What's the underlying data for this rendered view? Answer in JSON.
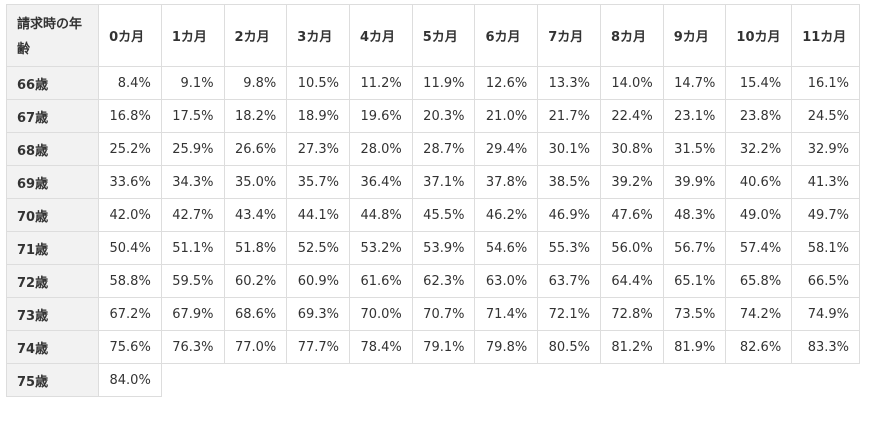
{
  "table": {
    "corner_label": "請求時の年齢",
    "columns": [
      "0カ月",
      "1カ月",
      "2カ月",
      "3カ月",
      "4カ月",
      "5カ月",
      "6カ月",
      "7カ月",
      "8カ月",
      "9カ月",
      "10カ月",
      "11カ月"
    ],
    "rows": [
      {
        "age": "66歳",
        "values": [
          "8.4%",
          "9.1%",
          "9.8%",
          "10.5%",
          "11.2%",
          "11.9%",
          "12.6%",
          "13.3%",
          "14.0%",
          "14.7%",
          "15.4%",
          "16.1%"
        ]
      },
      {
        "age": "67歳",
        "values": [
          "16.8%",
          "17.5%",
          "18.2%",
          "18.9%",
          "19.6%",
          "20.3%",
          "21.0%",
          "21.7%",
          "22.4%",
          "23.1%",
          "23.8%",
          "24.5%"
        ]
      },
      {
        "age": "68歳",
        "values": [
          "25.2%",
          "25.9%",
          "26.6%",
          "27.3%",
          "28.0%",
          "28.7%",
          "29.4%",
          "30.1%",
          "30.8%",
          "31.5%",
          "32.2%",
          "32.9%"
        ]
      },
      {
        "age": "69歳",
        "values": [
          "33.6%",
          "34.3%",
          "35.0%",
          "35.7%",
          "36.4%",
          "37.1%",
          "37.8%",
          "38.5%",
          "39.2%",
          "39.9%",
          "40.6%",
          "41.3%"
        ]
      },
      {
        "age": "70歳",
        "values": [
          "42.0%",
          "42.7%",
          "43.4%",
          "44.1%",
          "44.8%",
          "45.5%",
          "46.2%",
          "46.9%",
          "47.6%",
          "48.3%",
          "49.0%",
          "49.7%"
        ]
      },
      {
        "age": "71歳",
        "values": [
          "50.4%",
          "51.1%",
          "51.8%",
          "52.5%",
          "53.2%",
          "53.9%",
          "54.6%",
          "55.3%",
          "56.0%",
          "56.7%",
          "57.4%",
          "58.1%"
        ]
      },
      {
        "age": "72歳",
        "values": [
          "58.8%",
          "59.5%",
          "60.2%",
          "60.9%",
          "61.6%",
          "62.3%",
          "63.0%",
          "63.7%",
          "64.4%",
          "65.1%",
          "65.8%",
          "66.5%"
        ]
      },
      {
        "age": "73歳",
        "values": [
          "67.2%",
          "67.9%",
          "68.6%",
          "69.3%",
          "70.0%",
          "70.7%",
          "71.4%",
          "72.1%",
          "72.8%",
          "73.5%",
          "74.2%",
          "74.9%"
        ]
      },
      {
        "age": "74歳",
        "values": [
          "75.6%",
          "76.3%",
          "77.0%",
          "77.7%",
          "78.4%",
          "79.1%",
          "79.8%",
          "80.5%",
          "81.2%",
          "81.9%",
          "82.6%",
          "83.3%"
        ]
      },
      {
        "age": "75歳",
        "values": [
          "84.0%"
        ]
      }
    ]
  }
}
